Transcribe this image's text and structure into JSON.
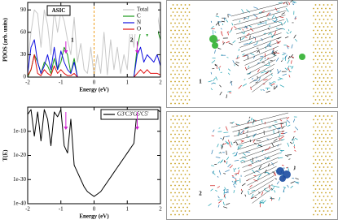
{
  "chart_data": [
    {
      "type": "line",
      "label": "ASIC",
      "xlabel": "Energy (eV)",
      "ylabel": "PDOS (arb. units)",
      "xlim": [
        -2,
        2
      ],
      "xticks": [
        -2,
        -1,
        0,
        1,
        2
      ],
      "ylim": [
        0,
        100
      ],
      "yticks": [
        0,
        30,
        60,
        90
      ],
      "legend_loc": "upper right",
      "fermi_level": 0,
      "fermi_color": "#f0a020",
      "x": [
        -2,
        -1.9,
        -1.8,
        -1.7,
        -1.6,
        -1.5,
        -1.4,
        -1.3,
        -1.2,
        -1.1,
        -1,
        -0.9,
        -0.8,
        -0.7,
        -0.6,
        -0.5,
        -0.4,
        -0.3,
        -0.2,
        -0.1,
        0,
        0.1,
        0.2,
        0.3,
        0.4,
        0.5,
        0.6,
        0.7,
        0.8,
        0.9,
        1,
        1.1,
        1.2,
        1.3,
        1.4,
        1.5,
        1.6,
        1.7,
        1.8,
        1.9,
        2
      ],
      "series": [
        {
          "name": "Total",
          "color": "#c8c8c8",
          "values": [
            20,
            60,
            90,
            85,
            40,
            90,
            70,
            30,
            90,
            60,
            88,
            75,
            50,
            30,
            80,
            20,
            45,
            10,
            5,
            40,
            2,
            30,
            5,
            60,
            3,
            50,
            10,
            40,
            5,
            30,
            10,
            70,
            40,
            90,
            60,
            95,
            80,
            90,
            70,
            85,
            60
          ]
        },
        {
          "name": "C",
          "color": "#1a9a1a",
          "values": [
            0,
            10,
            30,
            20,
            5,
            20,
            15,
            5,
            25,
            10,
            20,
            40,
            30,
            5,
            25,
            0,
            0,
            0,
            0,
            0,
            0,
            0,
            0,
            0,
            0,
            0,
            0,
            0,
            0,
            0,
            0,
            0,
            0,
            40,
            60,
            70,
            55,
            75,
            60,
            65,
            50
          ]
        },
        {
          "name": "N",
          "color": "#1010e0",
          "values": [
            5,
            40,
            50,
            20,
            5,
            15,
            30,
            10,
            40,
            10,
            35,
            20,
            10,
            5,
            20,
            0,
            0,
            0,
            0,
            0,
            0,
            0,
            0,
            0,
            0,
            0,
            0,
            0,
            0,
            0,
            0,
            0,
            0,
            30,
            40,
            20,
            30,
            25,
            20,
            30,
            15
          ]
        },
        {
          "name": "O",
          "color": "#e01010",
          "values": [
            2,
            10,
            30,
            5,
            2,
            10,
            5,
            2,
            15,
            5,
            10,
            5,
            2,
            2,
            5,
            0,
            0,
            0,
            0,
            0,
            0,
            0,
            0,
            0,
            0,
            0,
            0,
            0,
            0,
            0,
            0,
            0,
            0,
            5,
            10,
            5,
            10,
            5,
            5,
            5,
            3
          ]
        }
      ],
      "annotations": [
        {
          "text": "1",
          "x": -0.85
        },
        {
          "text": "2",
          "x": 1.3
        }
      ],
      "annotation_color": "#d020d0"
    },
    {
      "type": "line",
      "xlabel": "Energy (eV)",
      "ylabel": "T(E)",
      "log_y": true,
      "xlim": [
        -2,
        2
      ],
      "xticks": [
        -2,
        -1,
        0,
        1,
        2
      ],
      "ylim": [
        1e-40,
        1
      ],
      "yticks": [
        {
          "value": 1e-10,
          "label": "1e-10"
        },
        {
          "value": 1e-20,
          "label": "1e-20"
        },
        {
          "value": 1e-30,
          "label": "1e-30"
        },
        {
          "value": 1e-40,
          "label": "1e-40"
        }
      ],
      "legend_loc": "upper right",
      "x": [
        -2,
        -1.9,
        -1.8,
        -1.7,
        -1.6,
        -1.5,
        -1.4,
        -1.3,
        -1.2,
        -1.1,
        -1,
        -0.9,
        -0.8,
        -0.7,
        -0.6,
        -0.5,
        -0.4,
        -0.3,
        -0.2,
        -0.1,
        0,
        0.1,
        0.2,
        0.3,
        0.4,
        0.5,
        0.6,
        0.7,
        0.8,
        0.9,
        1,
        1.1,
        1.2,
        1.3,
        1.4,
        1.5,
        1.6,
        1.7,
        1.8,
        1.9,
        2
      ],
      "series": [
        {
          "name": "G3'C3'G5'C5'",
          "color": "#000000",
          "values": [
            0.001,
            0.1,
            1e-12,
            0.01,
            1e-14,
            0.1,
            1e-05,
            1e-16,
            0.01,
            0.0001,
            0.1,
            1e-16,
            1e-19,
            1e-05,
            1e-24,
            1e-27,
            1e-30,
            1e-33,
            1e-35,
            1e-36,
            1e-37,
            1e-36,
            1e-35,
            1e-33,
            1e-31,
            1e-29,
            1e-27,
            1e-25,
            1e-23,
            1e-21,
            1e-19,
            1e-17,
            1e-15,
            0.1,
            0.01,
            0.1,
            0.001,
            0.1,
            0.01,
            0.1,
            0.01
          ]
        }
      ],
      "annotations": [
        {
          "text": "1",
          "x": -0.85
        },
        {
          "text": "2",
          "x": 1.3
        }
      ],
      "annotation_color": "#d020d0"
    }
  ],
  "panels": [
    {
      "label": "1",
      "blob_color": "#30b030"
    },
    {
      "label": "2",
      "blob_color": "#1a4aa0"
    }
  ]
}
